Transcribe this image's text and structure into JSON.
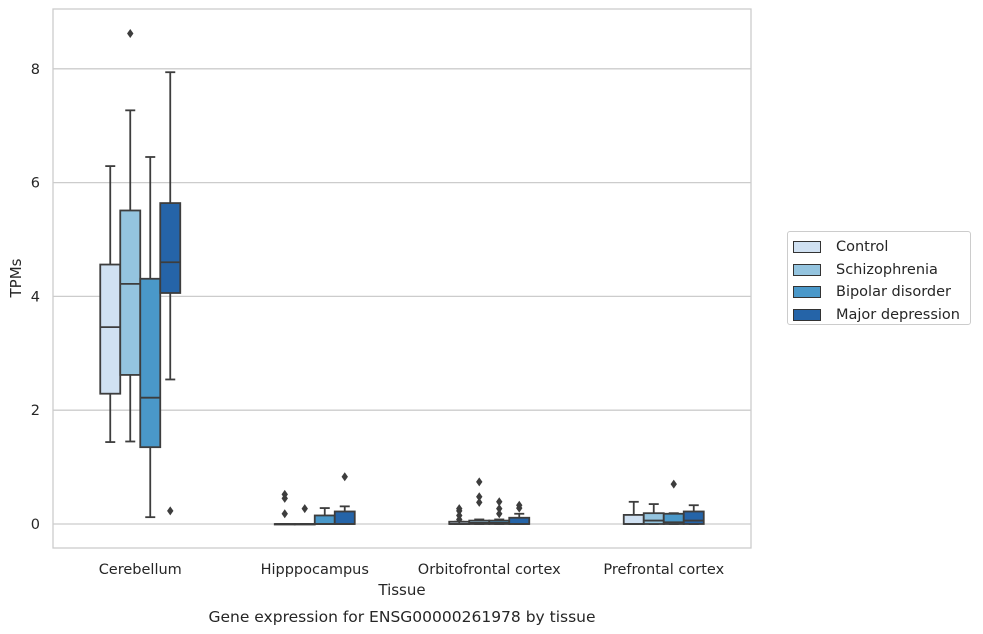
{
  "chart_data": {
    "type": "box",
    "title": "Gene expression for ENSG00000261978 by tissue",
    "xlabel": "Tissue",
    "ylabel": "TPMs",
    "ylim": [
      -0.42,
      9.1
    ],
    "yticks": [
      0,
      2,
      4,
      6,
      8
    ],
    "grid": true,
    "legend_position": "right",
    "categories": [
      "Cerebellum",
      "Hipppocampus",
      "Orbitofrontal cortex",
      "Prefrontal cortex"
    ],
    "series": [
      {
        "name": "Control",
        "color": "#d0e1f2",
        "boxes": [
          {
            "whislo": 1.44,
            "q1": 2.29,
            "med": 3.46,
            "q3": 4.56,
            "whishi": 6.29,
            "fliers": []
          },
          {
            "whislo": 0.0,
            "q1": 0.0,
            "med": 0.0,
            "q3": 0.0,
            "whishi": 0.0,
            "fliers": [
              0.18,
              0.45,
              0.52
            ]
          },
          {
            "whislo": 0.0,
            "q1": 0.0,
            "med": 0.0,
            "q3": 0.04,
            "whishi": 0.04,
            "fliers": [
              0.08,
              0.15,
              0.23,
              0.27
            ]
          },
          {
            "whislo": 0.0,
            "q1": 0.0,
            "med": 0.0,
            "q3": 0.16,
            "whishi": 0.39,
            "fliers": []
          }
        ]
      },
      {
        "name": "Schizophrenia",
        "color": "#94c4df",
        "boxes": [
          {
            "whislo": 1.45,
            "q1": 2.62,
            "med": 4.22,
            "q3": 5.51,
            "whishi": 7.27,
            "fliers": [
              8.62
            ]
          },
          {
            "whislo": 0.0,
            "q1": 0.0,
            "med": 0.0,
            "q3": 0.0,
            "whishi": 0.0,
            "fliers": [
              0.27
            ]
          },
          {
            "whislo": 0.0,
            "q1": 0.0,
            "med": 0.02,
            "q3": 0.06,
            "whishi": 0.08,
            "fliers": [
              0.38,
              0.48,
              0.74
            ]
          },
          {
            "whislo": 0.0,
            "q1": 0.0,
            "med": 0.06,
            "q3": 0.19,
            "whishi": 0.35,
            "fliers": []
          }
        ]
      },
      {
        "name": "Bipolar disorder",
        "color": "#4a98c9",
        "boxes": [
          {
            "whislo": 0.12,
            "q1": 1.35,
            "med": 2.22,
            "q3": 4.31,
            "whishi": 6.45,
            "fliers": []
          },
          {
            "whislo": 0.0,
            "q1": 0.0,
            "med": 0.0,
            "q3": 0.15,
            "whishi": 0.28,
            "fliers": []
          },
          {
            "whislo": 0.0,
            "q1": 0.0,
            "med": 0.02,
            "q3": 0.06,
            "whishi": 0.08,
            "fliers": [
              0.18,
              0.27,
              0.39
            ]
          },
          {
            "whislo": 0.0,
            "q1": 0.0,
            "med": 0.03,
            "q3": 0.18,
            "whishi": 0.19,
            "fliers": [
              0.7
            ]
          }
        ]
      },
      {
        "name": "Major depression",
        "color": "#2564a8",
        "boxes": [
          {
            "whislo": 2.54,
            "q1": 4.06,
            "med": 4.6,
            "q3": 5.64,
            "whishi": 7.94,
            "fliers": [
              0.23
            ]
          },
          {
            "whislo": 0.0,
            "q1": 0.0,
            "med": 0.0,
            "q3": 0.22,
            "whishi": 0.31,
            "fliers": [
              0.83
            ]
          },
          {
            "whislo": 0.0,
            "q1": 0.0,
            "med": 0.0,
            "q3": 0.11,
            "whishi": 0.18,
            "fliers": [
              0.28,
              0.33
            ]
          },
          {
            "whislo": 0.0,
            "q1": 0.0,
            "med": 0.06,
            "q3": 0.22,
            "whishi": 0.33,
            "fliers": []
          }
        ]
      }
    ]
  }
}
